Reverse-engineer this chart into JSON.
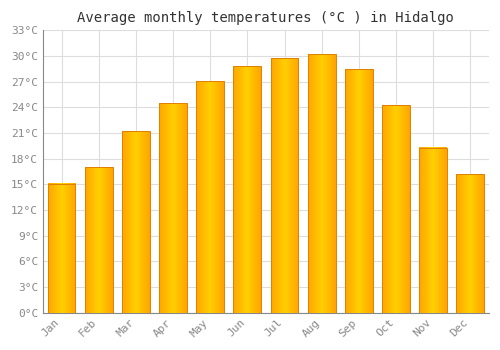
{
  "title": "Average monthly temperatures (°C ) in Hidalgo",
  "months": [
    "Jan",
    "Feb",
    "Mar",
    "Apr",
    "May",
    "Jun",
    "Jul",
    "Aug",
    "Sep",
    "Oct",
    "Nov",
    "Dec"
  ],
  "temperatures": [
    15.1,
    17.0,
    21.2,
    24.5,
    27.1,
    28.8,
    29.8,
    30.2,
    28.5,
    24.3,
    19.3,
    16.2
  ],
  "bar_color": "#FFAA00",
  "bar_edge_color": "#E08000",
  "background_color": "#FFFFFF",
  "grid_color": "#DDDDDD",
  "ylim": [
    0,
    33
  ],
  "yticks": [
    0,
    3,
    6,
    9,
    12,
    15,
    18,
    21,
    24,
    27,
    30,
    33
  ],
  "ytick_labels": [
    "0°C",
    "3°C",
    "6°C",
    "9°C",
    "12°C",
    "15°C",
    "18°C",
    "21°C",
    "24°C",
    "27°C",
    "30°C",
    "33°C"
  ],
  "title_fontsize": 10,
  "tick_fontsize": 8,
  "tick_color": "#888888",
  "axis_color": "#888888",
  "bar_width": 0.75
}
